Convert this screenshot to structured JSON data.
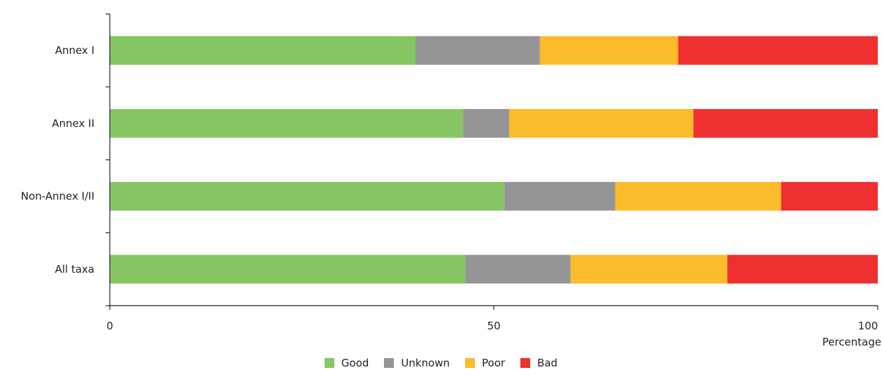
{
  "chart_data": {
    "type": "bar",
    "orientation": "horizontal",
    "stacked": true,
    "categories": [
      "Annex I",
      "Annex II",
      "Non-Annex I/II",
      "All taxa"
    ],
    "series": [
      {
        "name": "Good",
        "color": "#86c662",
        "values": [
          39.8,
          46.0,
          51.4,
          46.3
        ]
      },
      {
        "name": "Unknown",
        "color": "#959597",
        "values": [
          16.2,
          6.0,
          14.4,
          13.7
        ]
      },
      {
        "name": "Poor",
        "color": "#fbbc2b",
        "values": [
          18.0,
          24.0,
          21.6,
          20.4
        ]
      },
      {
        "name": "Bad",
        "color": "#ee3030",
        "values": [
          26.0,
          24.0,
          12.6,
          19.6
        ]
      }
    ],
    "xlabel": "Percentage",
    "ylabel": "",
    "xlim": [
      0,
      100
    ],
    "xticks": [
      0,
      50,
      100
    ],
    "grid": false,
    "legend_position": "bottom-center"
  }
}
